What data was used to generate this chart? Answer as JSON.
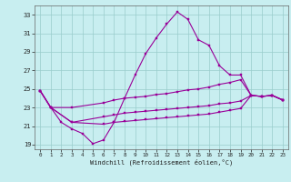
{
  "xlabel": "Windchill (Refroidissement éolien,°C)",
  "background_color": "#c8eef0",
  "line_color": "#990099",
  "grid_color": "#99cccc",
  "xlim": [
    -0.5,
    23.5
  ],
  "ylim": [
    18.5,
    34.0
  ],
  "yticks": [
    19,
    21,
    23,
    25,
    27,
    29,
    31,
    33
  ],
  "xticks": [
    0,
    1,
    2,
    3,
    4,
    5,
    6,
    7,
    8,
    9,
    10,
    11,
    12,
    13,
    14,
    15,
    16,
    17,
    18,
    19,
    20,
    21,
    22,
    23
  ],
  "line1_x": [
    0,
    1,
    2,
    3,
    4,
    5,
    6,
    7,
    8,
    9,
    10,
    11,
    12,
    13,
    14,
    15,
    16,
    17,
    18,
    19,
    20,
    21,
    22,
    23
  ],
  "line1_y": [
    24.8,
    23.0,
    21.4,
    20.7,
    20.2,
    19.1,
    19.5,
    21.4,
    24.0,
    26.5,
    28.8,
    30.5,
    32.0,
    33.3,
    32.5,
    30.3,
    29.7,
    27.5,
    26.5,
    26.5,
    24.3,
    24.2,
    24.3,
    23.8
  ],
  "line2_x": [
    0,
    1,
    3,
    6,
    7,
    8,
    9,
    10,
    11,
    12,
    13,
    14,
    15,
    16,
    17,
    18,
    19,
    20,
    21,
    22,
    23
  ],
  "line2_y": [
    24.8,
    23.0,
    23.0,
    23.5,
    23.8,
    24.0,
    24.1,
    24.2,
    24.4,
    24.5,
    24.7,
    24.9,
    25.0,
    25.2,
    25.5,
    25.7,
    26.0,
    24.3,
    24.2,
    24.3,
    23.8
  ],
  "line3_x": [
    0,
    1,
    3,
    6,
    7,
    8,
    9,
    10,
    11,
    12,
    13,
    14,
    15,
    16,
    17,
    18,
    19,
    20,
    21,
    22,
    23
  ],
  "line3_y": [
    24.8,
    23.0,
    21.4,
    22.0,
    22.2,
    22.4,
    22.5,
    22.6,
    22.7,
    22.8,
    22.9,
    23.0,
    23.1,
    23.2,
    23.4,
    23.5,
    23.7,
    24.3,
    24.2,
    24.3,
    23.8
  ],
  "line4_x": [
    0,
    1,
    3,
    6,
    7,
    8,
    9,
    10,
    11,
    12,
    13,
    14,
    15,
    16,
    17,
    18,
    19,
    20,
    21,
    22,
    23
  ],
  "line4_y": [
    24.8,
    23.0,
    21.4,
    21.2,
    21.4,
    21.5,
    21.6,
    21.7,
    21.8,
    21.9,
    22.0,
    22.1,
    22.2,
    22.3,
    22.5,
    22.7,
    22.9,
    24.3,
    24.2,
    24.3,
    23.8
  ]
}
